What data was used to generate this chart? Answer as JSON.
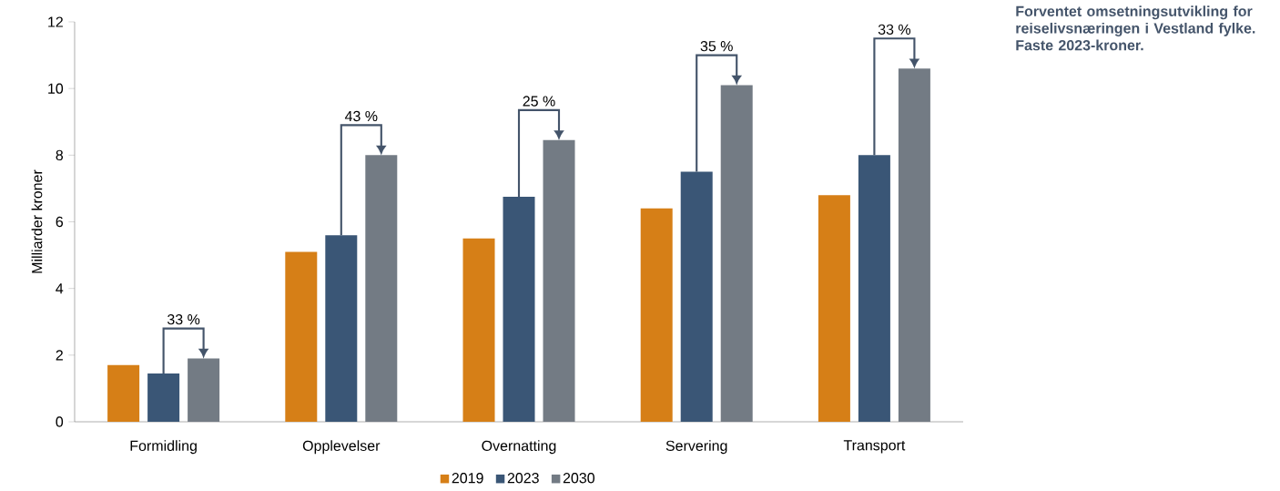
{
  "chart_data": {
    "type": "bar",
    "title": "Forventet omsetningsutvikling for reiselivsnæringen i Vestland fylke. Faste 2023-kroner.",
    "ylabel": "Milliarder kroner",
    "categories": [
      "Formidling",
      "Opplevelser",
      "Overnatting",
      "Servering",
      "Transport"
    ],
    "series": [
      {
        "name": "2019",
        "color": "#d67f17",
        "values": [
          1.7,
          5.1,
          5.5,
          6.4,
          6.8
        ]
      },
      {
        "name": "2023",
        "color": "#3a5676",
        "values": [
          1.45,
          5.6,
          6.75,
          7.5,
          8.0
        ]
      },
      {
        "name": "2030",
        "color": "#737b84",
        "values": [
          1.9,
          8.0,
          8.45,
          10.1,
          10.6
        ]
      }
    ],
    "ylim": [
      0,
      12
    ],
    "yticks": [
      0,
      2,
      4,
      6,
      8,
      10,
      12
    ],
    "legend": "bottom",
    "annotations": [
      "33 %",
      "43 %",
      "25 %",
      "35 %",
      "33 %"
    ]
  }
}
